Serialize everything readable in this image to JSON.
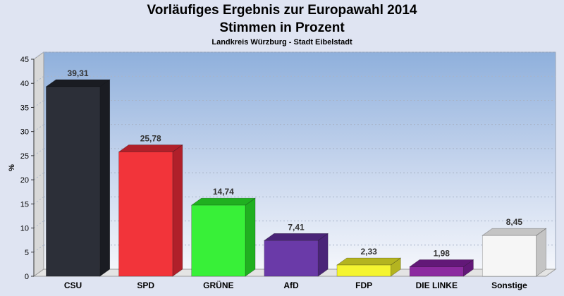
{
  "chart_data": {
    "type": "bar",
    "title": "Vorläufiges Ergebnis zur Europawahl 2014",
    "subtitle_line": "Stimmen in Prozent",
    "caption": "Landkreis Würzburg - Stadt Eibelstadt",
    "ylabel": "%",
    "xlabel": "",
    "ylim": [
      0,
      45
    ],
    "yticks": [
      "0",
      "5",
      "10",
      "15",
      "20",
      "25",
      "30",
      "35",
      "40",
      "45"
    ],
    "grid": true,
    "categories": [
      "CSU",
      "SPD",
      "GRÜNE",
      "AfD",
      "FDP",
      "DIE LINKE",
      "Sonstige"
    ],
    "values": [
      39.31,
      25.78,
      14.74,
      7.41,
      2.33,
      1.98,
      8.45
    ],
    "value_labels": [
      "39,31",
      "25,78",
      "14,74",
      "7,41",
      "2,33",
      "1,98",
      "8,45"
    ],
    "colors": [
      "#2c2f38",
      "#f2343a",
      "#38f038",
      "#6a3aa8",
      "#f4f430",
      "#8c2aa0",
      "#f6f6f6"
    ],
    "side_colors": [
      "#1a1c22",
      "#b0202a",
      "#20b020",
      "#4a2478",
      "#b4b420",
      "#621878",
      "#c4c4c4"
    ]
  }
}
